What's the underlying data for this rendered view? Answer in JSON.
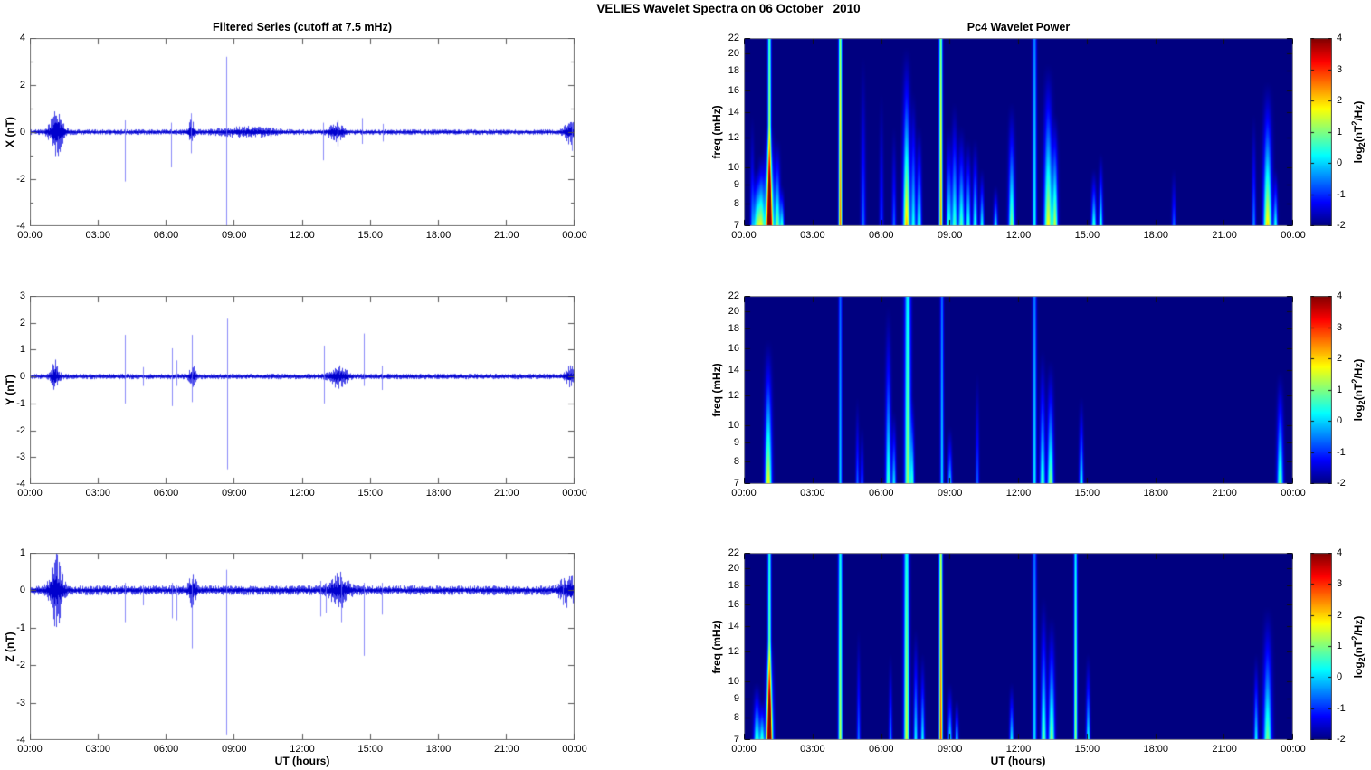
{
  "title": "VELIES Wavelet Spectra on 06 October   2010",
  "colorbar": {
    "ticks": [
      4,
      3,
      2,
      1,
      0,
      -1,
      -2
    ],
    "range": [
      -2,
      4
    ],
    "colormap": "jet",
    "label": {
      "p1": "log",
      "sub": "2",
      "p2": "(nT",
      "sup": "2",
      "p3": "/Hz)"
    }
  },
  "chart_data": {
    "left_title": "Filtered Series (cutoff at 7.5 mHz)",
    "right_title": "Pc4 Wavelet Power",
    "x_axis": {
      "label": "UT (hours)",
      "tick_labels": [
        "00:00",
        "03:00",
        "06:00",
        "09:00",
        "12:00",
        "15:00",
        "18:00",
        "21:00",
        "00:00"
      ],
      "tick_hours": [
        0,
        3,
        6,
        9,
        12,
        15,
        18,
        21,
        24
      ],
      "range_hours": [
        0,
        24
      ]
    },
    "series_panels": [
      {
        "type": "line",
        "name": "X",
        "ylabel": "X (nT)",
        "line_color": "#0000E6",
        "ylim": [
          -4,
          4
        ],
        "ytick_labels": [
          4,
          2,
          0,
          -2,
          -4
        ],
        "ytick_marks": [
          4,
          3,
          2,
          1,
          0,
          -1,
          -2,
          -3,
          -4
        ],
        "noise_amp": 0.09,
        "bursts": [
          {
            "t": 1.15,
            "w": 0.2,
            "amp": 0.8
          },
          {
            "t": 7.1,
            "w": 0.1,
            "amp": 0.35
          },
          {
            "t": 9.6,
            "w": 0.9,
            "amp": 0.12
          },
          {
            "t": 13.5,
            "w": 0.25,
            "amp": 0.25
          },
          {
            "t": 23.8,
            "w": 0.18,
            "amp": 0.35
          }
        ],
        "spikes": [
          {
            "t": 4.2,
            "up": 0.5,
            "down": -2.1
          },
          {
            "t": 6.2,
            "up": 0.4,
            "down": -1.5
          },
          {
            "t": 7.1,
            "up": 0.8,
            "down": -0.9
          },
          {
            "t": 8.65,
            "up": 3.2,
            "down": -4.0
          },
          {
            "t": 12.9,
            "up": 0.4,
            "down": -1.2
          },
          {
            "t": 13.55,
            "up": 0.5,
            "down": -0.6
          },
          {
            "t": 14.65,
            "up": 0.6,
            "down": -0.5
          },
          {
            "t": 15.55,
            "up": 0.35,
            "down": -0.4
          },
          {
            "t": 23.9,
            "up": 0.4,
            "down": -0.8
          }
        ]
      },
      {
        "type": "line",
        "name": "Y",
        "ylabel": "Y (nT)",
        "line_color": "#0000E6",
        "ylim": [
          -4,
          3
        ],
        "ytick_labels": [
          3,
          2,
          1,
          0,
          -1,
          -2,
          -3,
          -4
        ],
        "ytick_marks": [
          3,
          2,
          1,
          0,
          -1,
          -2,
          -3,
          -4
        ],
        "noise_amp": 0.08,
        "bursts": [
          {
            "t": 1.1,
            "w": 0.12,
            "amp": 0.42
          },
          {
            "t": 7.15,
            "w": 0.1,
            "amp": 0.28
          },
          {
            "t": 13.6,
            "w": 0.25,
            "amp": 0.3
          },
          {
            "t": 23.8,
            "w": 0.15,
            "amp": 0.25
          }
        ],
        "spikes": [
          {
            "t": 4.2,
            "up": 1.55,
            "down": -1.0
          },
          {
            "t": 5.0,
            "up": 0.35,
            "down": -0.35
          },
          {
            "t": 6.25,
            "up": 1.05,
            "down": -1.1
          },
          {
            "t": 6.45,
            "up": 0.6,
            "down": -0.35
          },
          {
            "t": 7.15,
            "up": 1.55,
            "down": -0.95
          },
          {
            "t": 8.7,
            "up": 2.15,
            "down": -3.45
          },
          {
            "t": 12.95,
            "up": 1.15,
            "down": -1.0
          },
          {
            "t": 14.7,
            "up": 1.6,
            "down": -0.35
          },
          {
            "t": 15.5,
            "up": 0.4,
            "down": -0.5
          }
        ]
      },
      {
        "type": "line",
        "name": "Z",
        "ylabel": "Z (nT)",
        "line_color": "#0000E6",
        "ylim": [
          -4,
          1
        ],
        "ytick_labels": [
          1,
          0,
          -1,
          -2,
          -3,
          -4
        ],
        "ytick_marks": [
          1,
          0,
          -1,
          -2,
          -3,
          -4
        ],
        "noise_amp": 0.1,
        "bursts": [
          {
            "t": 1.15,
            "w": 0.2,
            "amp": 0.72
          },
          {
            "t": 7.15,
            "w": 0.12,
            "amp": 0.3
          },
          {
            "t": 13.6,
            "w": 0.3,
            "amp": 0.3
          },
          {
            "t": 23.7,
            "w": 0.25,
            "amp": 0.28
          }
        ],
        "spikes": [
          {
            "t": 4.2,
            "up": 0.2,
            "down": -0.85
          },
          {
            "t": 5.0,
            "up": 0.15,
            "down": -0.4
          },
          {
            "t": 6.25,
            "up": 0.2,
            "down": -0.75
          },
          {
            "t": 6.45,
            "up": 0.15,
            "down": -0.8
          },
          {
            "t": 7.15,
            "up": 0.3,
            "down": -1.55
          },
          {
            "t": 8.65,
            "up": 0.55,
            "down": -3.85
          },
          {
            "t": 12.8,
            "up": 0.25,
            "down": -0.7
          },
          {
            "t": 13.05,
            "up": 0.2,
            "down": -0.6
          },
          {
            "t": 13.7,
            "up": 0.3,
            "down": -0.85
          },
          {
            "t": 14.7,
            "up": 0.2,
            "down": -1.75
          },
          {
            "t": 15.5,
            "up": 0.2,
            "down": -0.65
          },
          {
            "t": 23.5,
            "up": 0.15,
            "down": -0.4
          }
        ]
      }
    ],
    "spectrogram_panels": [
      {
        "type": "heatmap",
        "name": "X",
        "ylabel": "freq (mHz)",
        "yscale": "log",
        "freq_lim_mHz": [
          7,
          22
        ],
        "freq_ticks": [
          22,
          20,
          18,
          16,
          14,
          12,
          10,
          9,
          8,
          7
        ],
        "clim_log2": [
          -2,
          4
        ],
        "events": [
          {
            "t": 0.35,
            "fmax": 14,
            "p": -0.6,
            "w": 0.06
          },
          {
            "t": 0.55,
            "fmax": 10,
            "p": 0.8,
            "w": 0.1
          },
          {
            "t": 0.75,
            "fmax": 11,
            "p": 1.2,
            "w": 0.1
          },
          {
            "t": 1.1,
            "fmax": 13,
            "p": 4.0,
            "w": 0.12
          },
          {
            "t": 1.1,
            "fmax": 22,
            "p": 2.0,
            "w": 0.05,
            "full": true
          },
          {
            "t": 1.45,
            "fmax": 12,
            "p": 1.0,
            "w": 0.08
          },
          {
            "t": 1.65,
            "fmax": 9,
            "p": 0.5,
            "w": 0.06
          },
          {
            "t": 4.2,
            "fmax": 22,
            "p": 2.6,
            "w": 0.05,
            "full": true
          },
          {
            "t": 5.2,
            "fmax": 20,
            "p": -0.6,
            "w": 0.07
          },
          {
            "t": 6.0,
            "fmax": 16,
            "p": -0.9,
            "w": 0.06
          },
          {
            "t": 6.55,
            "fmax": 13,
            "p": -0.6,
            "w": 0.06
          },
          {
            "t": 7.1,
            "fmax": 21,
            "p": 2.2,
            "w": 0.1
          },
          {
            "t": 7.4,
            "fmax": 16,
            "p": 0.4,
            "w": 0.07
          },
          {
            "t": 7.65,
            "fmax": 13,
            "p": 0.6,
            "w": 0.07
          },
          {
            "t": 8.6,
            "fmax": 22,
            "p": 2.4,
            "w": 0.05,
            "full": true
          },
          {
            "t": 8.95,
            "fmax": 13,
            "p": 0.6,
            "w": 0.08
          },
          {
            "t": 9.2,
            "fmax": 15,
            "p": 0.7,
            "w": 0.08
          },
          {
            "t": 9.5,
            "fmax": 13,
            "p": 0.8,
            "w": 0.09
          },
          {
            "t": 9.8,
            "fmax": 12,
            "p": 0.6,
            "w": 0.07
          },
          {
            "t": 10.1,
            "fmax": 12,
            "p": 0.5,
            "w": 0.07
          },
          {
            "t": 10.4,
            "fmax": 10,
            "p": 0.4,
            "w": 0.06
          },
          {
            "t": 11.0,
            "fmax": 9,
            "p": 0.2,
            "w": 0.06
          },
          {
            "t": 11.7,
            "fmax": 15,
            "p": 1.1,
            "w": 0.09
          },
          {
            "t": 12.7,
            "fmax": 22,
            "p": 0.3,
            "w": 0.06,
            "full": true
          },
          {
            "t": 13.3,
            "fmax": 19,
            "p": 1.8,
            "w": 0.12
          },
          {
            "t": 13.6,
            "fmax": 14,
            "p": 1.3,
            "w": 0.08
          },
          {
            "t": 15.3,
            "fmax": 10,
            "p": 0.6,
            "w": 0.07
          },
          {
            "t": 15.6,
            "fmax": 11,
            "p": 0.5,
            "w": 0.06
          },
          {
            "t": 18.8,
            "fmax": 10,
            "p": -0.6,
            "w": 0.06
          },
          {
            "t": 22.3,
            "fmax": 14,
            "p": -0.4,
            "w": 0.06
          },
          {
            "t": 22.9,
            "fmax": 17,
            "p": 2.0,
            "w": 0.12
          },
          {
            "t": 23.25,
            "fmax": 10,
            "p": 0.4,
            "w": 0.06
          }
        ]
      },
      {
        "type": "heatmap",
        "name": "Y",
        "ylabel": "freq (mHz)",
        "yscale": "log",
        "freq_lim_mHz": [
          7,
          22
        ],
        "freq_ticks": [
          22,
          20,
          18,
          16,
          14,
          12,
          10,
          9,
          8,
          7
        ],
        "clim_log2": [
          -2,
          4
        ],
        "events": [
          {
            "t": 1.05,
            "fmax": 17,
            "p": 1.8,
            "w": 0.1
          },
          {
            "t": 4.2,
            "fmax": 22,
            "p": 0.0,
            "w": 0.05,
            "full": true
          },
          {
            "t": 4.95,
            "fmax": 12,
            "p": -0.6,
            "w": 0.05
          },
          {
            "t": 5.15,
            "fmax": 10,
            "p": -0.7,
            "w": 0.05
          },
          {
            "t": 6.3,
            "fmax": 21,
            "p": 0.7,
            "w": 0.08
          },
          {
            "t": 6.55,
            "fmax": 11,
            "p": 0.2,
            "w": 0.06
          },
          {
            "t": 7.15,
            "fmax": 22,
            "p": 1.2,
            "w": 0.09,
            "full": true
          },
          {
            "t": 7.35,
            "fmax": 12,
            "p": 0.4,
            "w": 0.06
          },
          {
            "t": 8.65,
            "fmax": 22,
            "p": 0.1,
            "w": 0.05,
            "full": true
          },
          {
            "t": 9.0,
            "fmax": 10,
            "p": 0.1,
            "w": 0.06
          },
          {
            "t": 10.2,
            "fmax": 14,
            "p": -0.6,
            "w": 0.05
          },
          {
            "t": 12.7,
            "fmax": 22,
            "p": 0.2,
            "w": 0.06,
            "full": true
          },
          {
            "t": 13.05,
            "fmax": 16,
            "p": 0.7,
            "w": 0.08
          },
          {
            "t": 13.4,
            "fmax": 15,
            "p": 1.1,
            "w": 0.09
          },
          {
            "t": 14.75,
            "fmax": 12,
            "p": 0.4,
            "w": 0.06
          },
          {
            "t": 23.45,
            "fmax": 14,
            "p": 0.9,
            "w": 0.09
          }
        ]
      },
      {
        "type": "heatmap",
        "name": "Z",
        "ylabel": "freq (mHz)",
        "yscale": "log",
        "freq_lim_mHz": [
          7,
          22
        ],
        "freq_ticks": [
          22,
          20,
          18,
          16,
          14,
          12,
          10,
          9,
          8,
          7
        ],
        "clim_log2": [
          -2,
          4
        ],
        "events": [
          {
            "t": 0.55,
            "fmax": 10,
            "p": 0.7,
            "w": 0.09
          },
          {
            "t": 0.78,
            "fmax": 9,
            "p": 0.6,
            "w": 0.07
          },
          {
            "t": 1.1,
            "fmax": 13,
            "p": 3.8,
            "w": 0.1
          },
          {
            "t": 1.1,
            "fmax": 22,
            "p": 1.6,
            "w": 0.05,
            "full": true
          },
          {
            "t": 4.2,
            "fmax": 22,
            "p": 1.4,
            "w": 0.06,
            "full": true
          },
          {
            "t": 5.0,
            "fmax": 14,
            "p": -0.5,
            "w": 0.05
          },
          {
            "t": 6.4,
            "fmax": 12,
            "p": -0.4,
            "w": 0.05
          },
          {
            "t": 7.1,
            "fmax": 22,
            "p": 1.5,
            "w": 0.08,
            "full": true
          },
          {
            "t": 7.5,
            "fmax": 14,
            "p": 0.3,
            "w": 0.06
          },
          {
            "t": 7.8,
            "fmax": 12,
            "p": 0.3,
            "w": 0.06
          },
          {
            "t": 8.6,
            "fmax": 22,
            "p": 3.0,
            "w": 0.05,
            "full": true
          },
          {
            "t": 9.0,
            "fmax": 10,
            "p": 0.3,
            "w": 0.06
          },
          {
            "t": 9.3,
            "fmax": 9,
            "p": 0.2,
            "w": 0.05
          },
          {
            "t": 11.7,
            "fmax": 10,
            "p": 0.3,
            "w": 0.06
          },
          {
            "t": 12.7,
            "fmax": 22,
            "p": 0.1,
            "w": 0.06,
            "full": true
          },
          {
            "t": 13.1,
            "fmax": 17,
            "p": 0.9,
            "w": 0.08
          },
          {
            "t": 13.45,
            "fmax": 15,
            "p": 1.2,
            "w": 0.09
          },
          {
            "t": 14.5,
            "fmax": 22,
            "p": 1.2,
            "w": 0.05,
            "full": true
          },
          {
            "t": 15.05,
            "fmax": 12,
            "p": 0.4,
            "w": 0.06
          },
          {
            "t": 22.4,
            "fmax": 12,
            "p": 0.3,
            "w": 0.06
          },
          {
            "t": 22.9,
            "fmax": 16,
            "p": 1.0,
            "w": 0.12
          }
        ]
      }
    ]
  }
}
